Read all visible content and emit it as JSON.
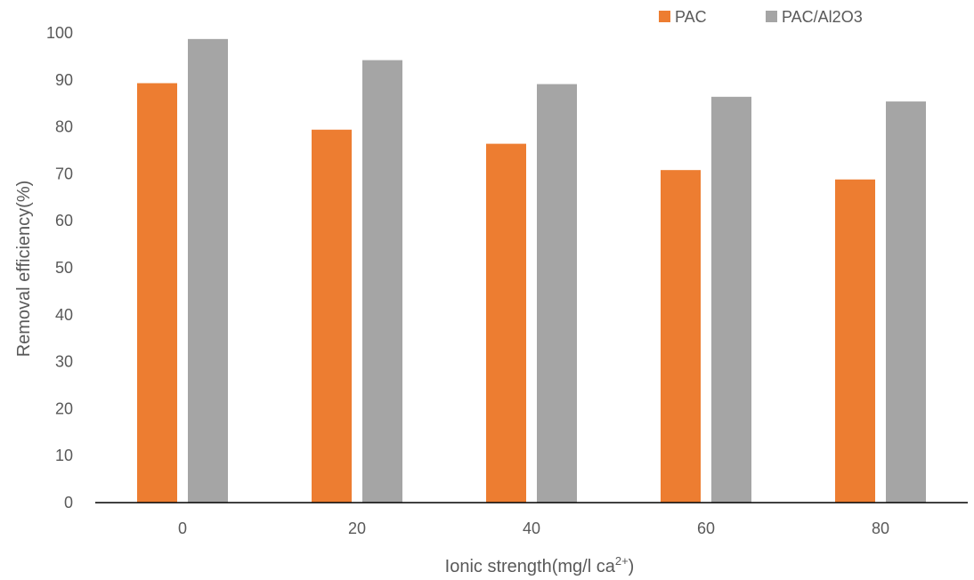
{
  "chart_data": {
    "type": "bar",
    "title": "",
    "xlabel": "Ionic strength(mg/l ca",
    "xlabel_superscript": "2+",
    "xlabel_suffix": ")",
    "ylabel": "Removal efficiency(%)",
    "ylim": [
      0,
      100
    ],
    "yticks": [
      "0",
      "10",
      "20",
      "30",
      "40",
      "50",
      "60",
      "70",
      "80",
      "90",
      "100"
    ],
    "categories": [
      "0",
      "20",
      "40",
      "60",
      "80"
    ],
    "series": [
      {
        "name": "PAC",
        "color": "#ED7D31",
        "values": [
          89.3,
          79.4,
          76.4,
          70.8,
          68.8
        ]
      },
      {
        "name": "PAC/Al2O3",
        "color": "#A5A5A5",
        "values": [
          98.7,
          94.2,
          89.1,
          86.4,
          85.4
        ]
      }
    ],
    "legend_position": "top-right",
    "grid": false
  }
}
